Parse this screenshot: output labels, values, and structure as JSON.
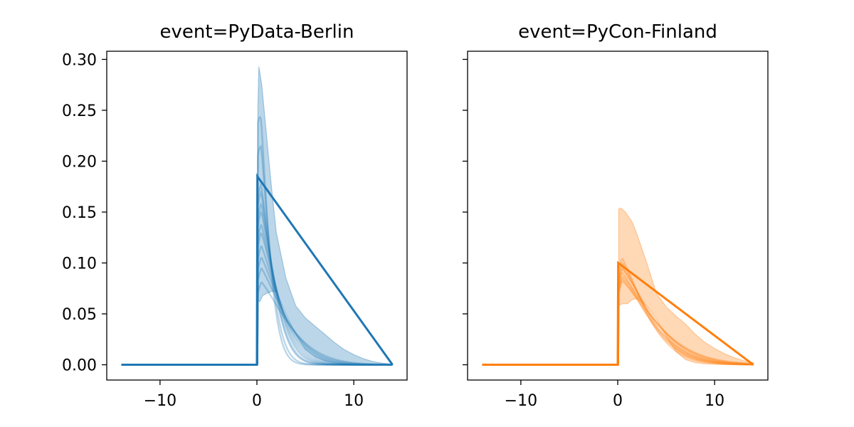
{
  "chart_data": [
    {
      "type": "line",
      "title": "event=PyData-Berlin",
      "xlabel": "",
      "ylabel": "",
      "xlim": [
        -15.5,
        15.5
      ],
      "ylim": [
        -0.015,
        0.308
      ],
      "xticks": [
        -10,
        0,
        10
      ],
      "xtick_labels": [
        "−10",
        "0",
        "10"
      ],
      "yticks": [
        0.0,
        0.05,
        0.1,
        0.15,
        0.2,
        0.25,
        0.3
      ],
      "ytick_labels": [
        "0.00",
        "0.05",
        "0.10",
        "0.15",
        "0.20",
        "0.25",
        "0.30"
      ],
      "grid": false,
      "color": "#1f77b4",
      "mean_line": {
        "x": [
          -14,
          0,
          0.05,
          14
        ],
        "y": [
          0.0,
          0.0,
          0.185,
          0.0
        ]
      },
      "band": {
        "upper": {
          "x": [
            0.1,
            0.2,
            0.5,
            1.0,
            1.5,
            2.0,
            3.0,
            4.0,
            5.0,
            6.0,
            7.0,
            8.0,
            9.0,
            10.0,
            11.0,
            12.0,
            13.0,
            14.0
          ],
          "y": [
            0.252,
            0.293,
            0.275,
            0.225,
            0.175,
            0.13,
            0.085,
            0.058,
            0.046,
            0.038,
            0.03,
            0.022,
            0.015,
            0.01,
            0.006,
            0.003,
            0.0015,
            0.0005
          ]
        },
        "lower": {
          "x": [
            0.1,
            0.3,
            0.6,
            1.0,
            1.5,
            2.0,
            3.0,
            4.0,
            5.0,
            6.0,
            7.0,
            8.0,
            9.0,
            10.0,
            11.0,
            12.0,
            13.0,
            14.0
          ],
          "y": [
            0.063,
            0.062,
            0.068,
            0.07,
            0.072,
            0.072,
            0.05,
            0.03,
            0.015,
            0.008,
            0.004,
            0.002,
            0.001,
            0.0005,
            0.0002,
            0.0001,
            0.0,
            0.0
          ]
        }
      },
      "samples": [
        {
          "peak": 0.293,
          "decay": 1.35
        },
        {
          "peak": 0.252,
          "decay": 1.55
        },
        {
          "peak": 0.2,
          "decay": 1.9
        },
        {
          "peak": 0.19,
          "decay": 2.0
        },
        {
          "peak": 0.175,
          "decay": 2.2
        },
        {
          "peak": 0.165,
          "decay": 2.35
        },
        {
          "peak": 0.15,
          "decay": 2.55
        },
        {
          "peak": 0.14,
          "decay": 2.75
        },
        {
          "peak": 0.125,
          "decay": 3.0
        },
        {
          "peak": 0.112,
          "decay": 3.3
        },
        {
          "peak": 0.1,
          "decay": 3.6
        },
        {
          "peak": 0.085,
          "decay": 4.0
        }
      ]
    },
    {
      "type": "line",
      "title": "event=PyCon-Finland",
      "xlabel": "",
      "ylabel": "",
      "xlim": [
        -15.5,
        15.5
      ],
      "ylim": [
        -0.015,
        0.308
      ],
      "xticks": [
        -10,
        0,
        10
      ],
      "xtick_labels": [
        "−10",
        "0",
        "10"
      ],
      "yticks": [
        0.0,
        0.05,
        0.1,
        0.15,
        0.2,
        0.25,
        0.3
      ],
      "ytick_labels": [],
      "grid": false,
      "color": "#ff7f0e",
      "mean_line": {
        "x": [
          -14,
          0,
          0.05,
          14
        ],
        "y": [
          0.0,
          0.0,
          0.1,
          0.0
        ]
      },
      "band": {
        "upper": {
          "x": [
            0.1,
            0.3,
            0.8,
            1.5,
            2.0,
            3.0,
            4.0,
            5.0,
            6.0,
            7.0,
            8.0,
            9.0,
            10.0,
            11.0,
            12.0,
            13.0,
            14.0
          ],
          "y": [
            0.153,
            0.154,
            0.15,
            0.14,
            0.128,
            0.1,
            0.07,
            0.057,
            0.048,
            0.04,
            0.03,
            0.022,
            0.016,
            0.011,
            0.007,
            0.004,
            0.002
          ]
        },
        "lower": {
          "x": [
            0.1,
            0.5,
            1.0,
            1.5,
            2.0,
            3.0,
            4.0,
            5.0,
            6.0,
            7.0,
            8.0,
            9.0,
            10.0,
            11.0,
            12.0,
            13.0,
            14.0
          ],
          "y": [
            0.058,
            0.06,
            0.06,
            0.064,
            0.065,
            0.058,
            0.045,
            0.028,
            0.013,
            0.005,
            0.002,
            0.001,
            0.0005,
            0.0002,
            0.0001,
            0.0,
            0.0
          ]
        }
      },
      "samples": [
        {
          "peak": 0.11,
          "decay": 3.6
        },
        {
          "peak": 0.105,
          "decay": 3.9
        },
        {
          "peak": 0.1,
          "decay": 4.2
        },
        {
          "peak": 0.098,
          "decay": 4.5
        },
        {
          "peak": 0.095,
          "decay": 4.0
        },
        {
          "peak": 0.09,
          "decay": 4.8
        },
        {
          "peak": 0.088,
          "decay": 4.4
        },
        {
          "peak": 0.085,
          "decay": 5.0
        }
      ]
    }
  ]
}
